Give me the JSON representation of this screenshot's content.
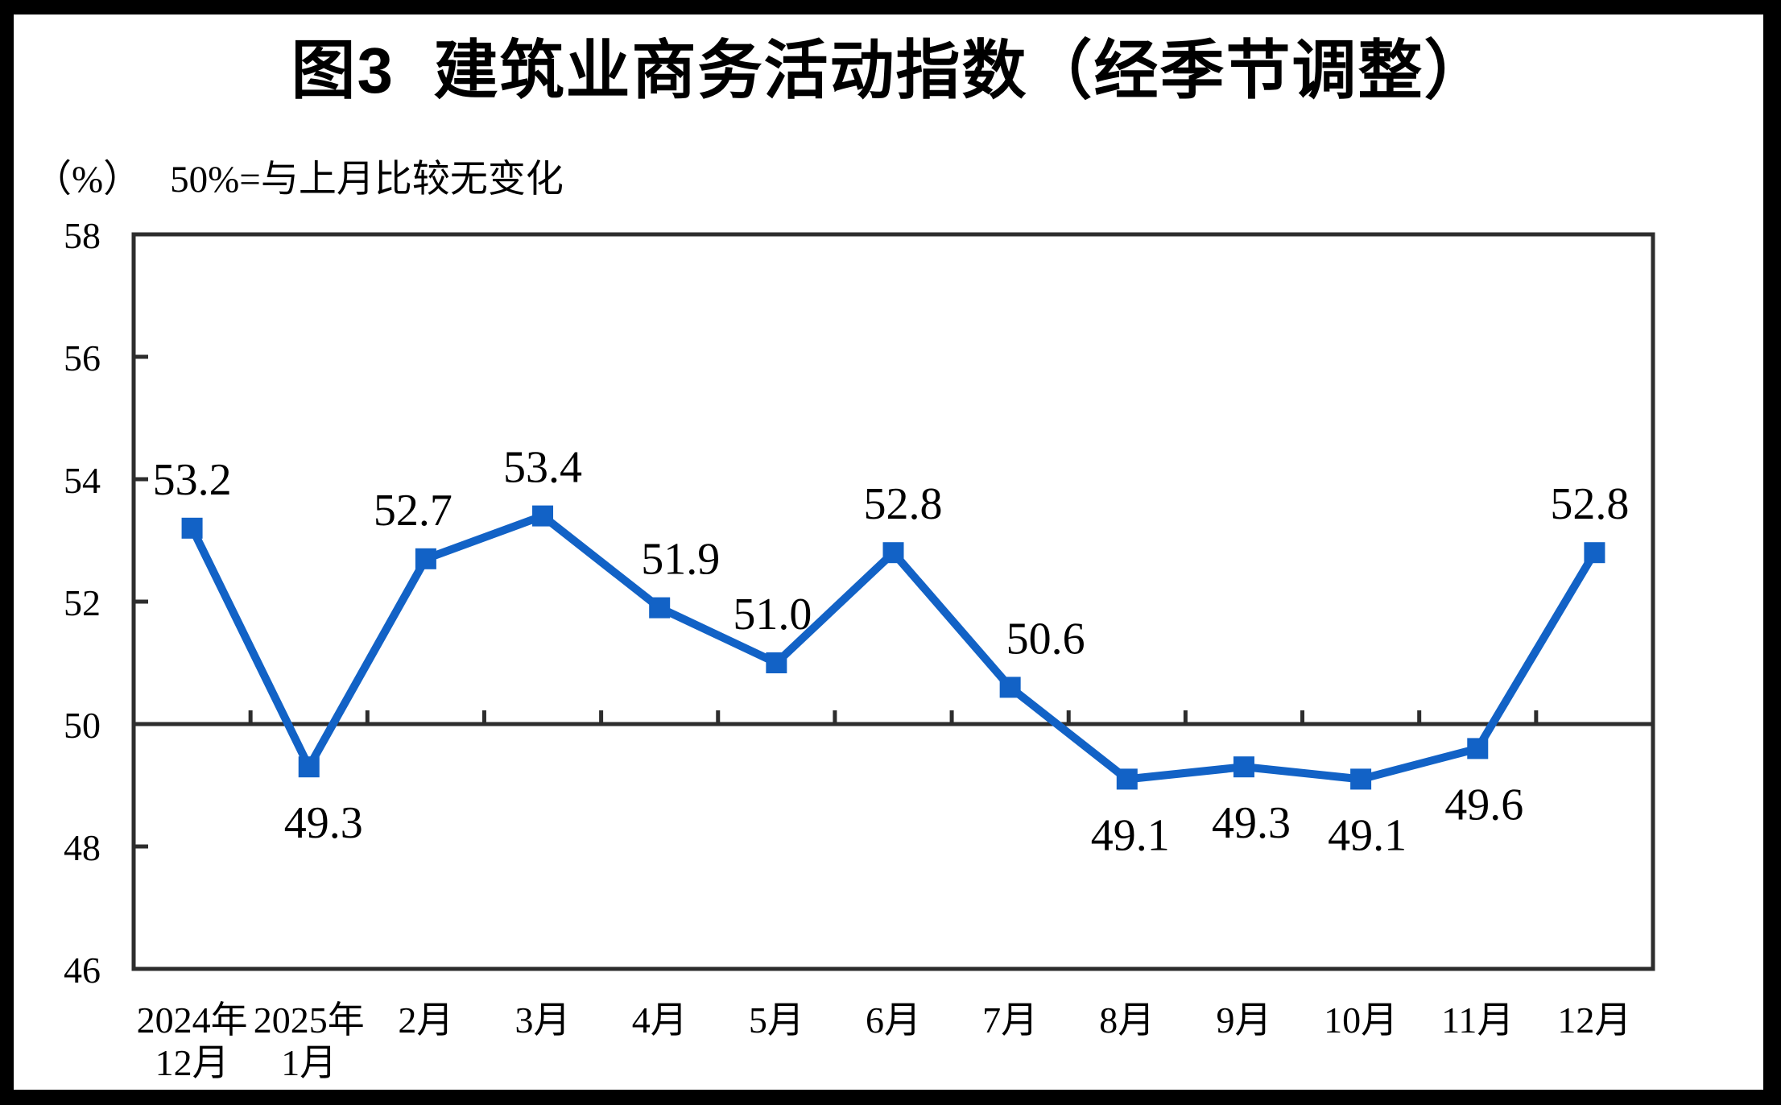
{
  "title": "图3  建筑业商务活动指数（经季节调整）",
  "axis_note": {
    "unit": "（%）",
    "note": "50%=与上月比较无变化"
  },
  "colors": {
    "line": "#1262C6",
    "axis": "#2D2D2D",
    "background": "#FFFFFF",
    "outer_border": "#000000",
    "text": "#000000"
  },
  "chart_data": {
    "type": "line",
    "title": "图3 建筑业商务活动指数（经季节调整）",
    "subtitle": "50%=与上月比较无变化",
    "unit": "（%）",
    "categories": [
      "2024年\n12月",
      "2025年\n1月",
      "2月",
      "3月",
      "4月",
      "5月",
      "6月",
      "7月",
      "8月",
      "9月",
      "10月",
      "11月",
      "12月"
    ],
    "series": [
      {
        "name": "建筑业商务活动指数",
        "values": [
          53.2,
          49.3,
          52.7,
          53.4,
          51.9,
          51.0,
          52.8,
          50.6,
          49.1,
          49.3,
          49.1,
          49.6,
          52.8
        ]
      }
    ],
    "value_labels": [
      "53.2",
      "49.3",
      "52.7",
      "53.4",
      "51.9",
      "51.0",
      "52.8",
      "50.6",
      "49.1",
      "49.3",
      "49.1",
      "49.6",
      "52.8"
    ],
    "ylabel_ticks": [
      "58",
      "56",
      "54",
      "52",
      "50",
      "48",
      "46"
    ],
    "ylim": [
      46,
      58
    ],
    "ytick_step": 2,
    "reference_line": 50,
    "grid": false,
    "legend": "none",
    "marker": "square",
    "label_decimals": 1,
    "label_dx": [
      0,
      18,
      -16,
      0,
      26,
      -5,
      12,
      44,
      4,
      9,
      8,
      8,
      -6
    ]
  }
}
